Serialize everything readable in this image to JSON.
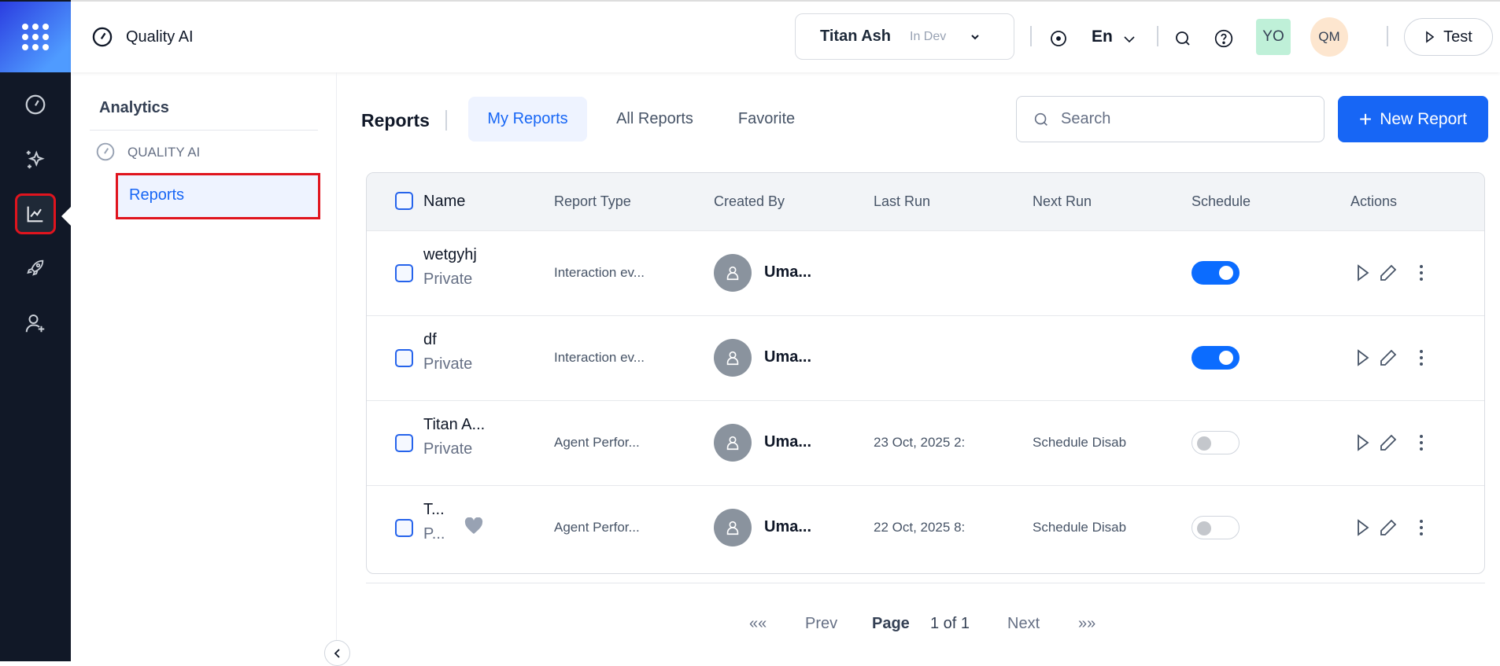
{
  "app": {
    "title": "Quality AI"
  },
  "header": {
    "bot_name": "Titan Ash",
    "bot_env": "In Dev",
    "language": "En",
    "avatars": [
      {
        "initials": "YO",
        "color": "#bff0d8"
      },
      {
        "initials": "QM",
        "color": "#fde6cf"
      }
    ],
    "test_label": "Test"
  },
  "rail": {
    "items": [
      "dashboard-icon",
      "sparkles-icon",
      "analytics-icon",
      "rocket-icon",
      "user-plus-icon"
    ],
    "active": "analytics-icon"
  },
  "subnav": {
    "title": "Analytics",
    "section": "QUALITY AI",
    "items": [
      {
        "label": "Reports",
        "active": true
      }
    ]
  },
  "main": {
    "title": "Reports",
    "tabs": [
      {
        "label": "My Reports",
        "active": true
      },
      {
        "label": "All Reports"
      },
      {
        "label": "Favorite"
      }
    ],
    "search_placeholder": "Search",
    "new_report_label": "New Report",
    "columns": [
      "Name",
      "Report Type",
      "Created By",
      "Last Run",
      "Next Run",
      "Schedule",
      "Actions"
    ],
    "rows": [
      {
        "name": "wetgyhj",
        "visibility": "Private",
        "type": "Interaction ev...",
        "created_by": "Uma...",
        "last_run": "",
        "next_run": "",
        "schedule_on": true,
        "favorite": false
      },
      {
        "name": "df",
        "visibility": "Private",
        "type": "Interaction ev...",
        "created_by": "Uma...",
        "last_run": "",
        "next_run": "",
        "schedule_on": true,
        "favorite": false
      },
      {
        "name": "Titan A...",
        "visibility": "Private",
        "type": "Agent Perfor...",
        "created_by": "Uma...",
        "last_run": "23 Oct, 2025 2:",
        "next_run": "Schedule Disab",
        "schedule_on": false,
        "favorite": false
      },
      {
        "name": "T...",
        "visibility": "P...",
        "type": "Agent Perfor...",
        "created_by": "Uma...",
        "last_run": "22 Oct, 2025 8:",
        "next_run": "Schedule Disab",
        "schedule_on": false,
        "favorite": true
      }
    ],
    "pagination": {
      "first": "««",
      "prev": "Prev",
      "page_label": "Page",
      "page_value": "1 of 1",
      "next": "Next",
      "last": "»»"
    }
  },
  "colors": {
    "accent": "#1766f5",
    "rail": "#111827",
    "highlight": "#e0141e"
  }
}
